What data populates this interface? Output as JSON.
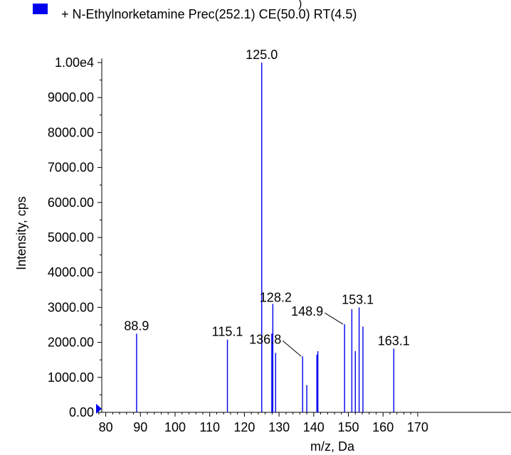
{
  "legend": {
    "top_fragment": ")",
    "label": "+ N-Ethylnorketamine Prec(252.1) CE(50.0) RT(4.5)",
    "color": "#0000ee"
  },
  "chart_data": {
    "type": "bar",
    "title": "",
    "xlabel": "m/z, Da",
    "ylabel": "Intensity, cps",
    "xlim": [
      77,
      171
    ],
    "ylim": [
      0,
      10000
    ],
    "xticks": [
      80,
      90,
      100,
      110,
      120,
      130,
      140,
      150,
      160,
      170
    ],
    "xtick_labels": [
      "80",
      "90",
      "100",
      "110",
      "120",
      "130",
      "140",
      "150",
      "160",
      "170"
    ],
    "yticks": [
      0,
      1000,
      2000,
      3000,
      4000,
      5000,
      6000,
      7000,
      8000,
      9000,
      10000
    ],
    "ytick_labels": [
      "0.00",
      "1000.00",
      "2000.00",
      "3000.00",
      "4000.00",
      "5000.00",
      "6000.00",
      "7000.00",
      "8000.00",
      "9000.00",
      "1.00e4"
    ],
    "grid": false,
    "legend_position": "top-left",
    "series": [
      {
        "name": "+ N-Ethylnorketamine Prec(252.1) CE(50.0) RT(4.5)",
        "color": "#0000ee",
        "points": [
          {
            "x": 88.9,
            "y": 2250
          },
          {
            "x": 115.1,
            "y": 2080
          },
          {
            "x": 125.0,
            "y": 10000
          },
          {
            "x": 127.9,
            "y": 2250
          },
          {
            "x": 128.2,
            "y": 3100
          },
          {
            "x": 129.0,
            "y": 1700
          },
          {
            "x": 136.8,
            "y": 1600
          },
          {
            "x": 138.0,
            "y": 780
          },
          {
            "x": 140.9,
            "y": 1650
          },
          {
            "x": 141.2,
            "y": 1750
          },
          {
            "x": 148.9,
            "y": 2520
          },
          {
            "x": 151.0,
            "y": 2950
          },
          {
            "x": 152.0,
            "y": 1750
          },
          {
            "x": 153.1,
            "y": 3000
          },
          {
            "x": 154.2,
            "y": 2450
          },
          {
            "x": 163.1,
            "y": 1820
          }
        ]
      }
    ],
    "annotations": [
      {
        "label": "88.9",
        "x": 88.9
      },
      {
        "label": "115.1",
        "x": 115.1
      },
      {
        "label": "125.0",
        "x": 125.0
      },
      {
        "label": "128.2",
        "x": 128.2
      },
      {
        "label": "136.8",
        "x": 136.8
      },
      {
        "label": "148.9",
        "x": 148.9
      },
      {
        "label": "153.1",
        "x": 153.1
      },
      {
        "label": "163.1",
        "x": 163.1
      }
    ]
  }
}
